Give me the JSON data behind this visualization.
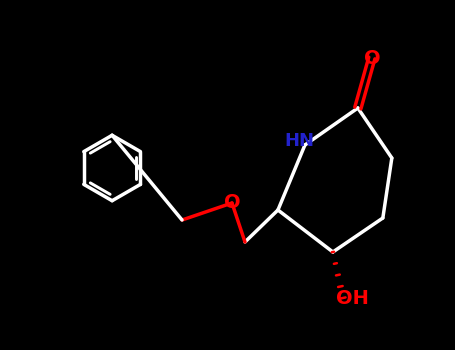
{
  "background_color": "#000000",
  "bond_color": "#ffffff",
  "bond_width": 2.5,
  "atom_colors": {
    "O": "#ff0000",
    "N": "#2222cc",
    "C": "#ffffff",
    "H": "#ffffff"
  },
  "figsize": [
    4.55,
    3.5
  ],
  "dpi": 100
}
